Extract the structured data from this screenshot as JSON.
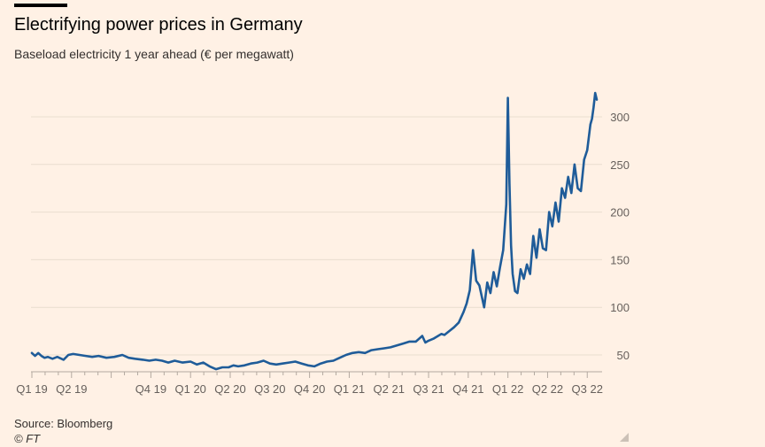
{
  "header": {
    "title": "Electrifying power prices in Germany",
    "subtitle": "Baseload electricity 1 year ahead (€ per megawatt)"
  },
  "footer": {
    "source": "Source: Bloomberg",
    "copyright": "© FT"
  },
  "colors": {
    "background": "#FFF1E5",
    "line": "#1F5C99",
    "gridline": "#E9DECF",
    "text": "#33302E",
    "tick": "#66605C"
  },
  "chart_data": {
    "type": "line",
    "title": "Electrifying power prices in Germany",
    "subtitle": "Baseload electricity 1 year ahead (€ per megawatt)",
    "xlabel": "",
    "ylabel": "",
    "ylim": [
      30,
      330
    ],
    "yticks": [
      50,
      100,
      150,
      200,
      250,
      300
    ],
    "ytick_labels": [
      "50",
      "100",
      "150",
      "200",
      "250",
      "300"
    ],
    "grid": true,
    "y_axis_side": "right",
    "x_tick_labels": [
      {
        "label": "Q1 19",
        "t": 2019.0
      },
      {
        "label": "Q2 19",
        "t": 2019.25
      },
      {
        "label": "Q4 19",
        "t": 2019.75
      },
      {
        "label": "Q1 20",
        "t": 2020.0
      },
      {
        "label": "Q2 20",
        "t": 2020.25
      },
      {
        "label": "Q3 20",
        "t": 2020.5
      },
      {
        "label": "Q4 20",
        "t": 2020.75
      },
      {
        "label": "Q1 21",
        "t": 2021.0
      },
      {
        "label": "Q2 21",
        "t": 2021.25
      },
      {
        "label": "Q3 21",
        "t": 2021.5
      },
      {
        "label": "Q4 21",
        "t": 2021.75
      },
      {
        "label": "Q1 22",
        "t": 2022.0
      },
      {
        "label": "Q2 22",
        "t": 2022.25
      },
      {
        "label": "Q3 22",
        "t": 2022.5
      }
    ],
    "series": [
      {
        "name": "Baseload electricity 1 year ahead",
        "x": [
          2019.0,
          2019.02,
          2019.04,
          2019.06,
          2019.08,
          2019.1,
          2019.13,
          2019.16,
          2019.2,
          2019.23,
          2019.26,
          2019.3,
          2019.34,
          2019.38,
          2019.42,
          2019.47,
          2019.52,
          2019.57,
          2019.61,
          2019.65,
          2019.7,
          2019.74,
          2019.78,
          2019.82,
          2019.86,
          2019.9,
          2019.95,
          2020.0,
          2020.04,
          2020.08,
          2020.12,
          2020.16,
          2020.2,
          2020.24,
          2020.27,
          2020.3,
          2020.34,
          2020.38,
          2020.42,
          2020.46,
          2020.5,
          2020.54,
          2020.58,
          2020.62,
          2020.66,
          2020.7,
          2020.74,
          2020.78,
          2020.82,
          2020.86,
          2020.9,
          2020.94,
          2020.98,
          2021.02,
          2021.06,
          2021.1,
          2021.14,
          2021.18,
          2021.22,
          2021.26,
          2021.3,
          2021.34,
          2021.38,
          2021.42,
          2021.46,
          2021.48,
          2021.5,
          2021.53,
          2021.56,
          2021.58,
          2021.6,
          2021.63,
          2021.66,
          2021.69,
          2021.72,
          2021.74,
          2021.76,
          2021.78,
          2021.8,
          2021.82,
          2021.85,
          2021.87,
          2021.89,
          2021.91,
          2021.93,
          2021.95,
          2021.97,
          2021.99,
          2022.0,
          2022.01,
          2022.02,
          2022.03,
          2022.045,
          2022.06,
          2022.08,
          2022.1,
          2022.12,
          2022.14,
          2022.16,
          2022.18,
          2022.2,
          2022.22,
          2022.24,
          2022.26,
          2022.28,
          2022.3,
          2022.32,
          2022.34,
          2022.36,
          2022.38,
          2022.4,
          2022.42,
          2022.44,
          2022.46,
          2022.48,
          2022.5,
          2022.52,
          2022.53,
          2022.54,
          2022.55,
          2022.56
        ],
        "values": [
          52,
          49,
          52,
          49,
          47,
          48,
          46,
          48,
          45,
          50,
          51,
          50,
          49,
          48,
          49,
          47,
          48,
          50,
          47,
          46,
          45,
          44,
          45,
          44,
          42,
          44,
          42,
          43,
          40,
          42,
          38,
          35,
          37,
          37,
          39,
          38,
          39,
          41,
          42,
          44,
          41,
          40,
          41,
          42,
          43,
          41,
          39,
          38,
          41,
          43,
          44,
          47,
          50,
          52,
          53,
          52,
          55,
          56,
          57,
          58,
          60,
          62,
          64,
          64,
          70,
          63,
          65,
          67,
          70,
          72,
          71,
          75,
          79,
          84,
          95,
          104,
          118,
          160,
          128,
          123,
          100,
          126,
          115,
          137,
          122,
          142,
          160,
          208,
          320,
          230,
          165,
          135,
          117,
          115,
          140,
          130,
          145,
          135,
          175,
          152,
          182,
          162,
          160,
          200,
          185,
          210,
          190,
          225,
          215,
          237,
          220,
          250,
          225,
          222,
          255,
          265,
          292,
          298,
          310,
          325,
          318
        ]
      }
    ]
  }
}
